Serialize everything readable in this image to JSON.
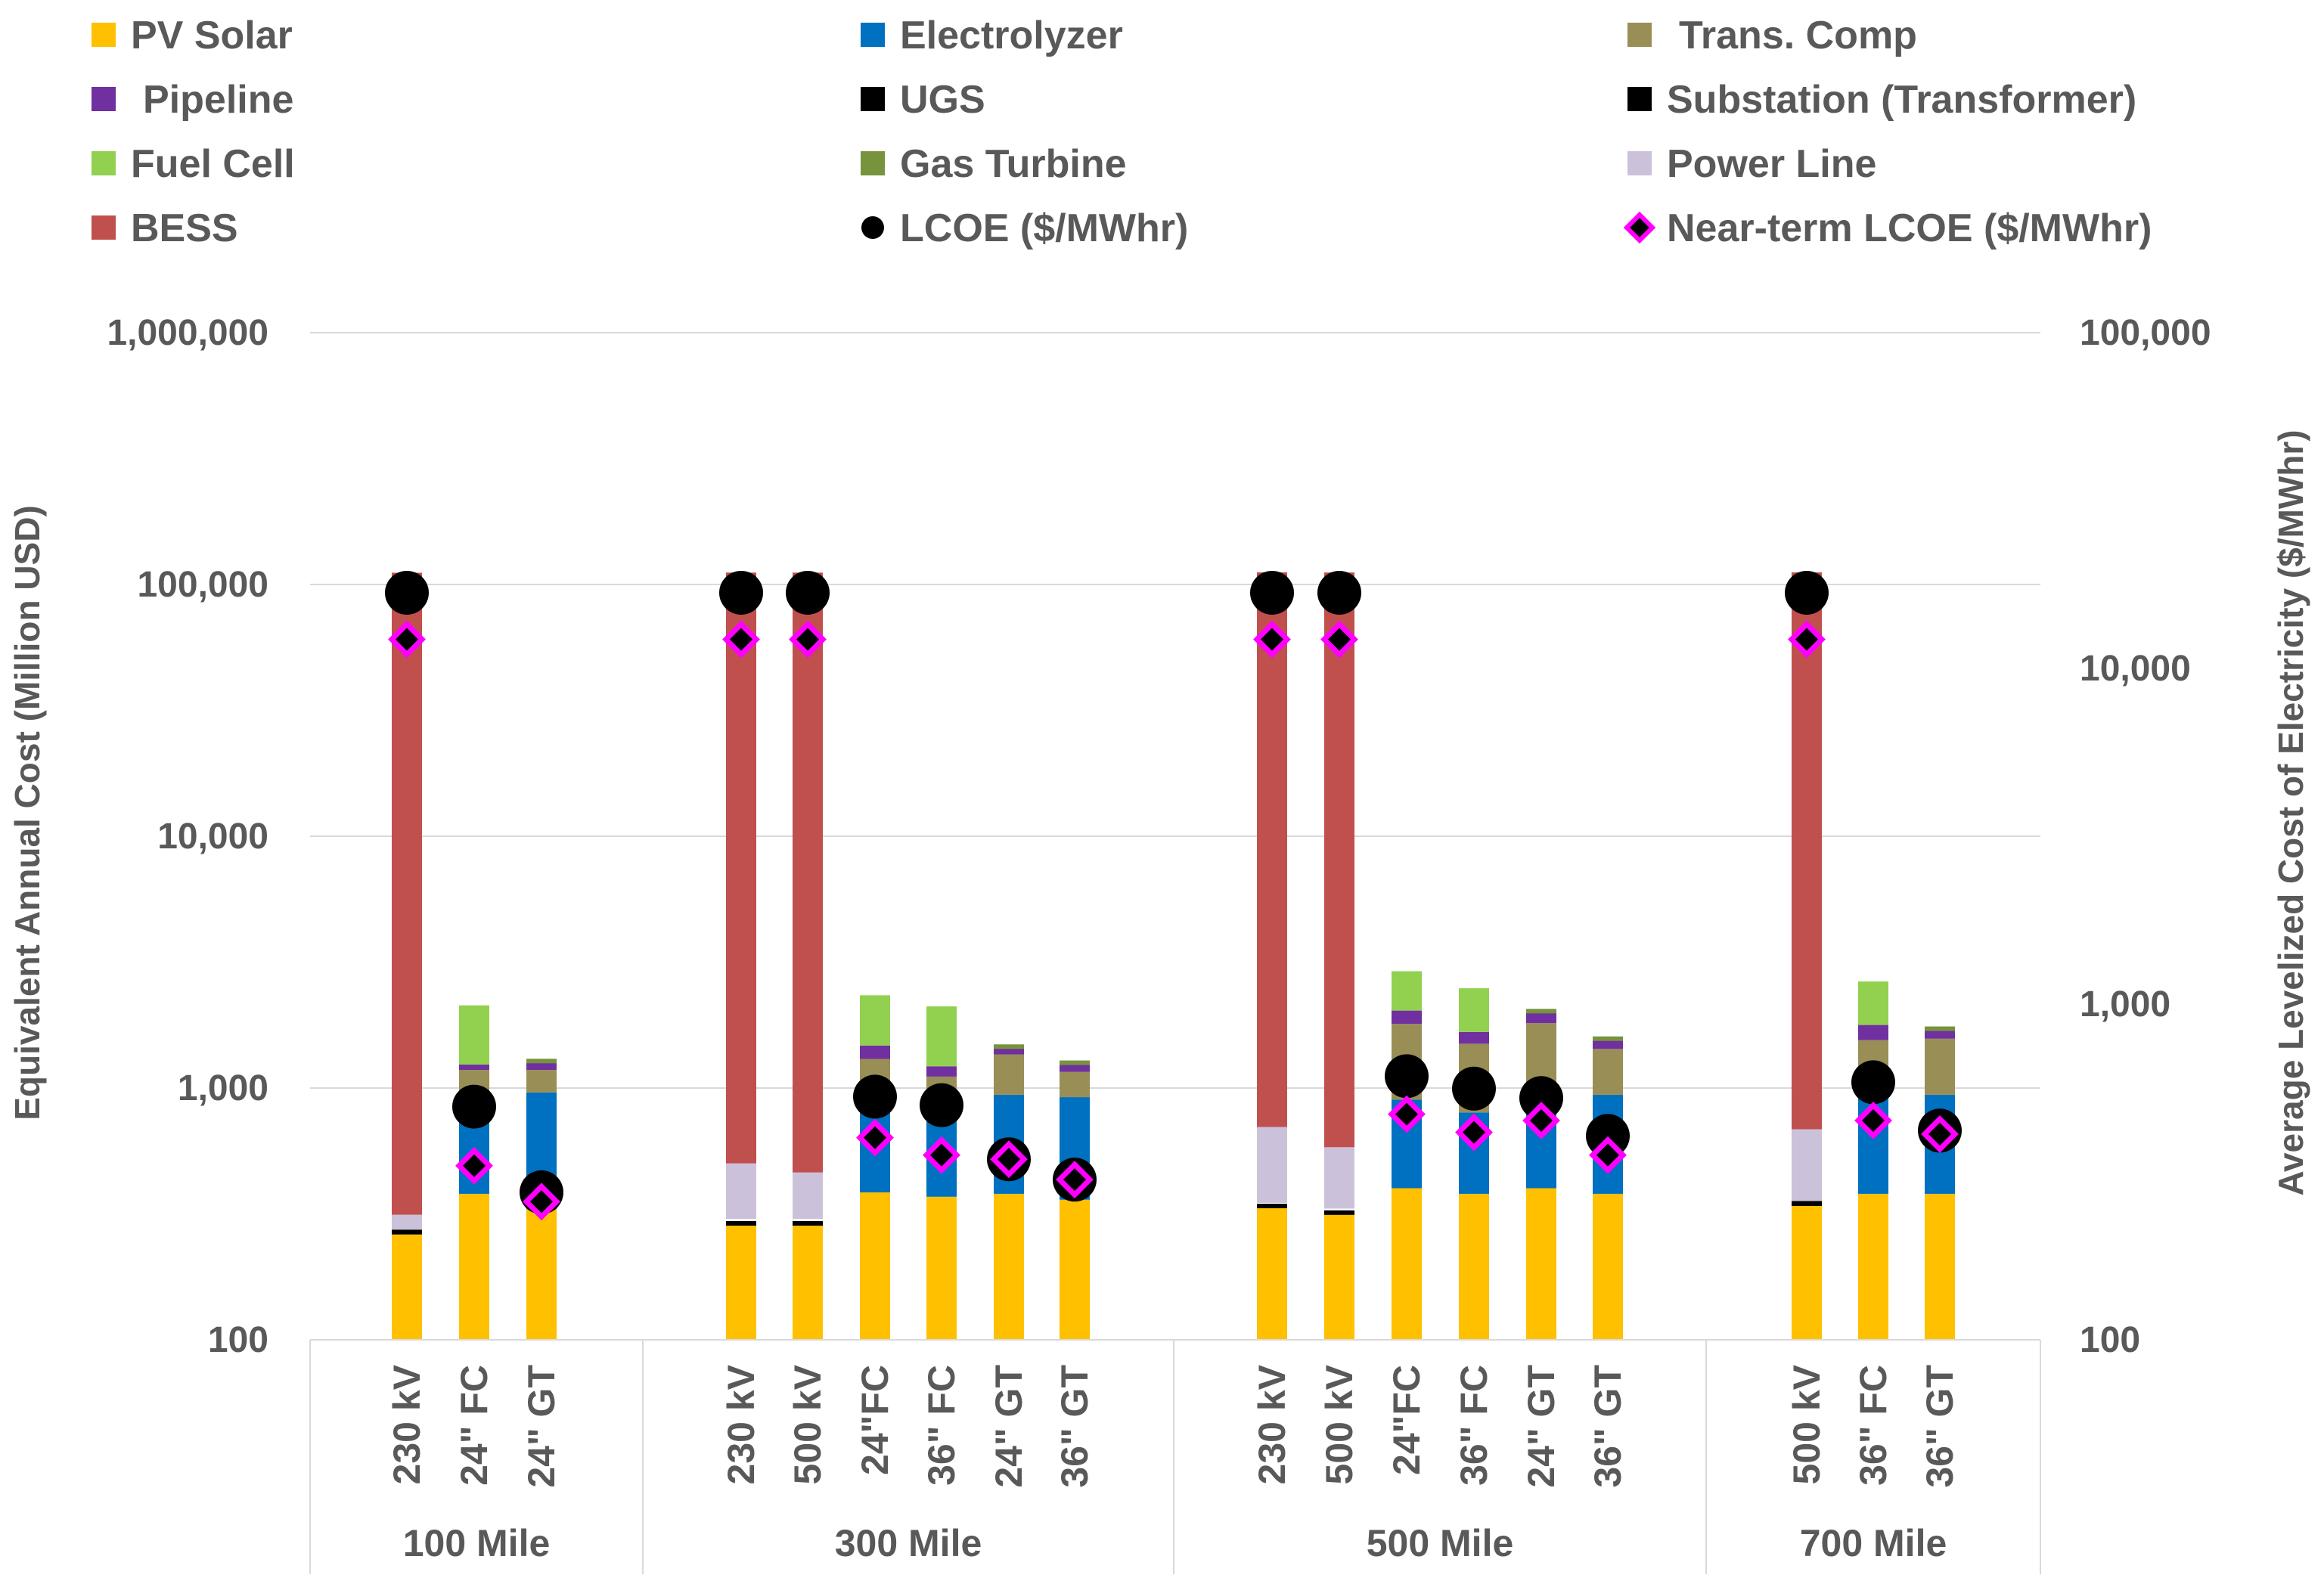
{
  "chart_data": {
    "type": "bar",
    "stacked": true,
    "y_scale": "log",
    "ylabel": "Equivalent Annual Cost (Million USD)",
    "ylim": [
      100,
      1000000
    ],
    "y_ticks": [
      "100",
      "1,000",
      "10,000",
      "100,000",
      "1,000,000"
    ],
    "y2label": "Average Levelized Cost of Electricity ($/MWhr)",
    "y2lim": [
      100,
      100000
    ],
    "y2_ticks": [
      "100",
      "1,000",
      "10,000",
      "100,000"
    ],
    "legend_position": "top",
    "groups": [
      {
        "label": "100 Mile",
        "categories": [
          "230 kV",
          "24\" FC",
          "24\" GT"
        ]
      },
      {
        "label": "300 Mile",
        "categories": [
          "230 kV",
          "500 kV",
          "24\"FC",
          "36\" FC",
          "24\" GT",
          "36\" GT"
        ]
      },
      {
        "label": "500 Mile",
        "categories": [
          "230 kV",
          "500 kV",
          "24\"FC",
          "36\" FC",
          "24\" GT",
          "36\" GT"
        ]
      },
      {
        "label": "700 Mile",
        "categories": [
          "500 kV",
          "36\" FC",
          "36\" GT"
        ]
      }
    ],
    "series": [
      {
        "name": "PV Solar",
        "color": "#FFC000",
        "values": [
          262,
          380,
          330,
          290,
          290,
          385,
          370,
          380,
          360,
          340,
          320,
          400,
          380,
          400,
          380,
          340,
          380,
          380
        ]
      },
      {
        "name": "Electrolyzer",
        "color": "#0070C0",
        "values": [
          0,
          570,
          630,
          0,
          0,
          520,
          480,
          560,
          560,
          0,
          0,
          500,
          420,
          590,
          560,
          0,
          550,
          560
        ]
      },
      {
        "name": "Trans. Comp",
        "color": "#998E55",
        "values": [
          0,
          230,
          220,
          0,
          0,
          400,
          260,
          420,
          240,
          0,
          0,
          900,
          700,
          820,
          490,
          0,
          620,
          630
        ]
      },
      {
        "name": "Pipeline",
        "color": "#7030A0",
        "values": [
          0,
          60,
          100,
          0,
          0,
          170,
          110,
          100,
          100,
          0,
          0,
          230,
          170,
          210,
          140,
          0,
          230,
          150
        ]
      },
      {
        "name": "UGS",
        "color": "#000000",
        "values": [
          0,
          0,
          0,
          0,
          0,
          0,
          0,
          0,
          0,
          0,
          0,
          0,
          0,
          0,
          0,
          0,
          0,
          0
        ]
      },
      {
        "name": "Substation (Transformer)",
        "color": "#000000",
        "values": [
          12,
          0,
          0,
          12,
          12,
          0,
          0,
          0,
          0,
          10,
          12,
          0,
          0,
          0,
          0,
          16,
          0,
          0
        ]
      },
      {
        "name": "Fuel Cell",
        "color": "#92D050",
        "values": [
          0,
          890,
          0,
          0,
          0,
          860,
          890,
          0,
          0,
          0,
          0,
          880,
          820,
          0,
          0,
          0,
          870,
          0
        ]
      },
      {
        "name": "Gas Turbine",
        "color": "#77933C",
        "values": [
          0,
          0,
          50,
          0,
          0,
          0,
          0,
          50,
          50,
          0,
          0,
          0,
          0,
          60,
          60,
          0,
          0,
          60
        ]
      },
      {
        "name": "Power Line",
        "color": "#CCC1DA",
        "values": [
          40,
          0,
          0,
          200,
          160,
          0,
          0,
          0,
          0,
          350,
          250,
          0,
          0,
          0,
          0,
          330,
          0,
          0
        ]
      },
      {
        "name": "BESS",
        "color": "#C0504D",
        "values": [
          111000,
          0,
          0,
          111000,
          111000,
          0,
          0,
          0,
          0,
          111000,
          111000,
          0,
          0,
          0,
          0,
          111000,
          0,
          0
        ]
      }
    ],
    "markers": [
      {
        "name": "LCOE ($/MWhr)",
        "color": "#000000",
        "axis": "secondary",
        "values": [
          16800,
          495,
          275,
          16800,
          16800,
          530,
          500,
          345,
          300,
          16800,
          16800,
          610,
          560,
          525,
          405,
          16800,
          585,
          420
        ]
      },
      {
        "name": "Near-term LCOE ($/MWhr)",
        "color": "#FF00FF",
        "axis": "secondary",
        "values": [
          12200,
          330,
          258,
          12200,
          12200,
          400,
          355,
          345,
          300,
          12200,
          12200,
          470,
          415,
          450,
          355,
          12200,
          450,
          410
        ]
      }
    ]
  }
}
